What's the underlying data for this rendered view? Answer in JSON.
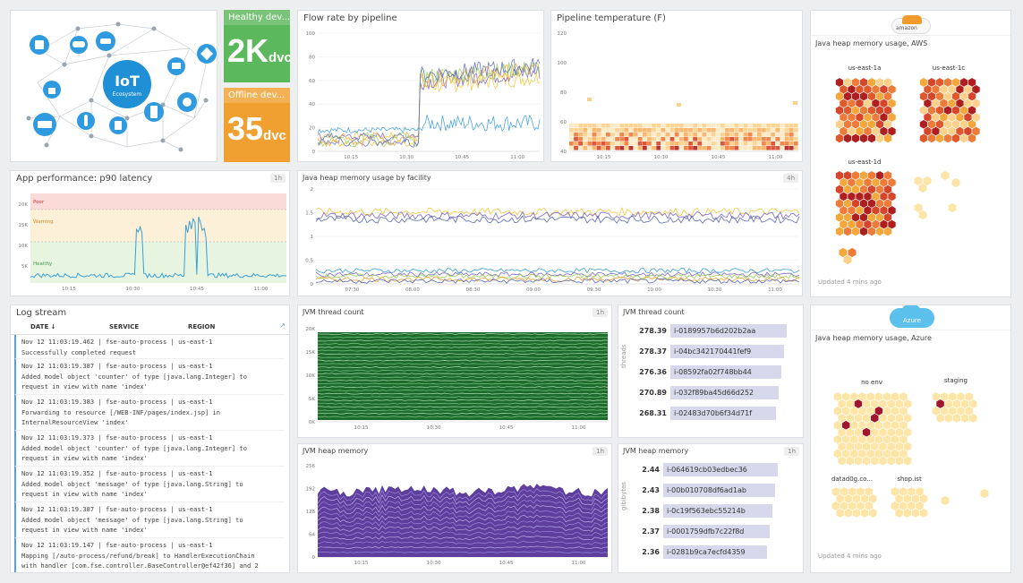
{
  "colors": {
    "healthy": "#5cb85c",
    "offline": "#f0a030",
    "flow_yellow": "#f4c93a",
    "flow_blue": "#3a9fd6",
    "purple": "#6a4cae",
    "green": "#2e7d32",
    "hex_red": "#c0392b"
  },
  "iot": {
    "label_main": "IoT",
    "label_sub": "Ecosystem"
  },
  "tiles": {
    "healthy": {
      "title": "Healthy dev...",
      "value": "2K",
      "unit": "dvc"
    },
    "offline": {
      "title": "Offline dev...",
      "value": "35",
      "unit": "dvc"
    }
  },
  "flow_chart": {
    "title": "Flow rate by pipeline",
    "yticks": [
      "100",
      "80",
      "60",
      "40",
      "20",
      "0"
    ],
    "xticks": [
      "10:15",
      "10:30",
      "10:45",
      "11:00"
    ]
  },
  "temp_chart": {
    "title": "Pipeline temperature (F)",
    "yticks": [
      "120",
      "100",
      "80",
      "60",
      "40"
    ],
    "xticks": [
      "10:15",
      "10:30",
      "10:45",
      "11:00"
    ]
  },
  "latency_chart": {
    "title": "App performance: p90 latency",
    "badge": "1h",
    "zones": [
      "Poor",
      "Warning",
      "Healthy"
    ],
    "yticks": [
      "20K",
      "15K",
      "10K",
      "5K"
    ],
    "xticks": [
      "10:15",
      "10:30",
      "10:45",
      "11:00"
    ]
  },
  "facility_chart": {
    "title": "Java heap memory usage by facility",
    "badge": "4h",
    "yticks": [
      "2",
      "1.5",
      "1",
      "0.5",
      "0"
    ],
    "xticks": [
      "07:30",
      "08:00",
      "08:30",
      "09:00",
      "09:30",
      "10:00",
      "10:30",
      "11:00"
    ]
  },
  "aws": {
    "cloud": "amazon",
    "title": "Java heap memory usage, AWS",
    "regions": [
      "us-east-1a",
      "us-east-1c",
      "us-east-1d"
    ],
    "updated": "Updated 4 mins ago"
  },
  "azure": {
    "cloud": "Azure",
    "title": "Java heap memory usage, Azure",
    "groups": [
      "no env",
      "staging",
      "datad0g.co...",
      "shop.ist"
    ],
    "updated": "Updated 4 mins ago"
  },
  "log": {
    "title": "Log stream",
    "columns": [
      "DATE ↓",
      "SERVICE",
      "REGION"
    ],
    "rows": [
      {
        "date": "Nov 12 11:03:19.462",
        "service": "fse-auto-process",
        "region": "us-east-1",
        "msg": [
          "Successfully completed request"
        ]
      },
      {
        "date": "Nov 12 11:03:19.387",
        "service": "fse-auto-process",
        "region": "us-east-1",
        "msg": [
          "Added model object 'counter' of type [java.lang.Integer] to",
          "request in view with name 'index'"
        ]
      },
      {
        "date": "Nov 12 11:03:19.383",
        "service": "fse-auto-process",
        "region": "us-east-1",
        "msg": [
          "Forwarding to resource [/WEB-INF/pages/index.jsp] in",
          "InternalResourceView 'index'"
        ]
      },
      {
        "date": "Nov 12 11:03:19.373",
        "service": "fse-auto-process",
        "region": "us-east-1",
        "msg": [
          "Added model object 'counter' of type [java.lang.Integer] to",
          "request in view with name 'index'"
        ]
      },
      {
        "date": "Nov 12 11:03:19.352",
        "service": "fse-auto-process",
        "region": "us-east-1",
        "msg": [
          "Added model object 'message' of type [java.lang.String] to",
          "request in view with name 'index'"
        ]
      },
      {
        "date": "Nov 12 11:03:19.387",
        "service": "fse-auto-process",
        "region": "us-east-1",
        "msg": [
          "Added model object 'message' of type [java.lang.String] to",
          "request in view with name 'index'"
        ]
      },
      {
        "date": "Nov 12 11:03:19.147",
        "service": "fse-auto-process",
        "region": "us-east-1",
        "msg": [
          "Mapping [/auto-process/refund/break] to HandlerExecutionChain",
          "with handler [com.fse.controller.BaseController@ef42f36] and 2"
        ]
      }
    ]
  },
  "thread_chart": {
    "title": "JVM thread count",
    "badge": "1h",
    "yticks": [
      "20K",
      "15K",
      "10K",
      "5K",
      "0K"
    ],
    "xticks": [
      "10:15",
      "10:30",
      "10:45",
      "11:00"
    ]
  },
  "thread_list": {
    "title": "JVM thread count",
    "axis": "threads",
    "rows": [
      {
        "value": "278.39",
        "host": "i-0189957b6d202b2aa"
      },
      {
        "value": "278.37",
        "host": "i-04bc342170441fef9"
      },
      {
        "value": "276.36",
        "host": "i-08592fa02f748bb44"
      },
      {
        "value": "270.89",
        "host": "i-032f89ba45d66d252"
      },
      {
        "value": "268.31",
        "host": "i-02483d70b6f34d71f"
      }
    ]
  },
  "heap_chart": {
    "title": "JVM heap memory",
    "badge": "1h",
    "yticks": [
      "256",
      "192",
      "128",
      "64",
      "0"
    ],
    "xticks": [
      "10:15",
      "10:30",
      "10:45",
      "11:00"
    ]
  },
  "heap_list": {
    "title": "JVM heap memory",
    "badge": "1h",
    "axis": "gibibytes",
    "rows": [
      {
        "value": "2.44",
        "host": "i-064619cb03edbec36"
      },
      {
        "value": "2.43",
        "host": "i-00b010708df6ad1ab"
      },
      {
        "value": "2.38",
        "host": "i-0c19f563ebc55214b"
      },
      {
        "value": "2.37",
        "host": "i-0001759dfb7c22f8d"
      },
      {
        "value": "2.36",
        "host": "i-0281b9ca7ecfd4359"
      }
    ]
  }
}
